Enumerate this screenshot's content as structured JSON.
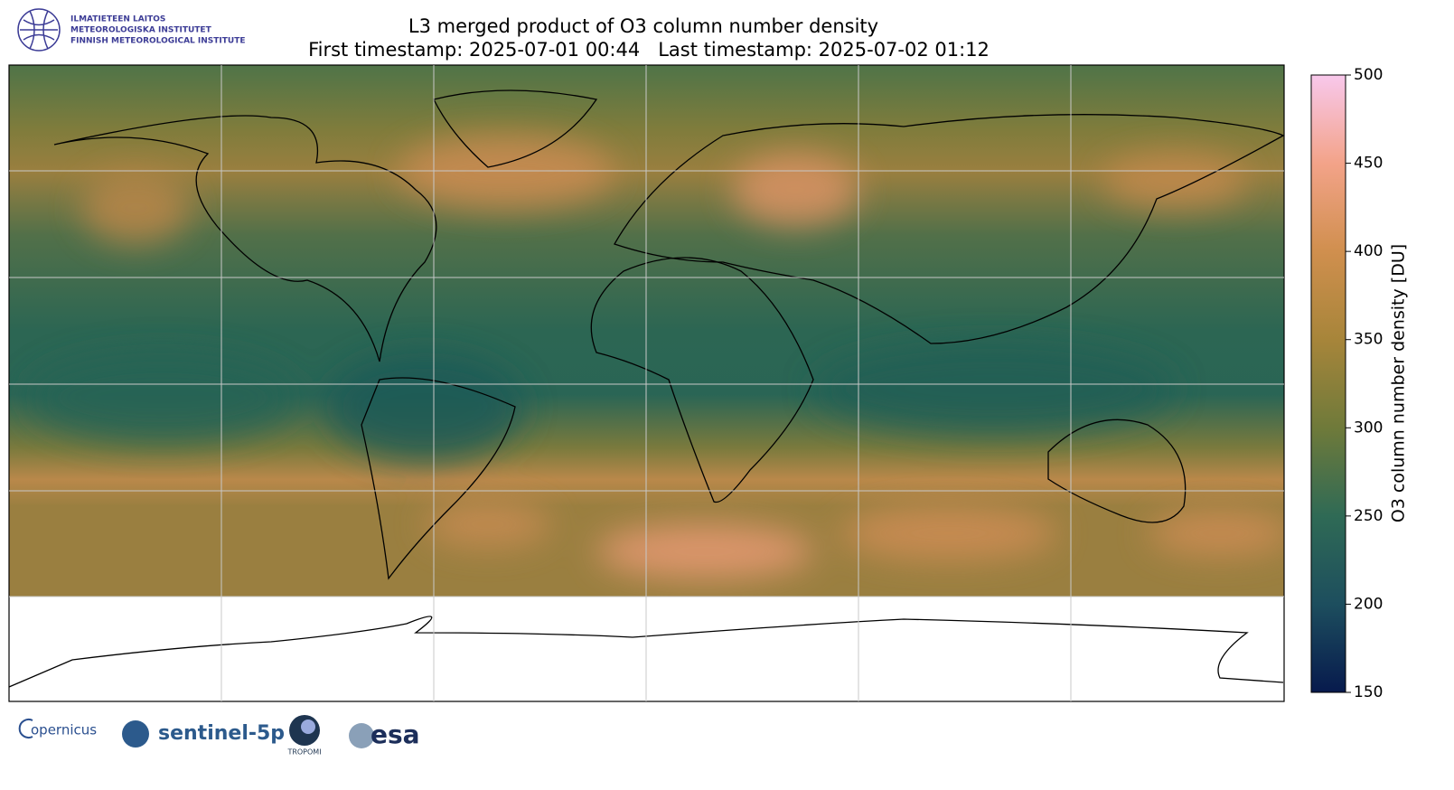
{
  "header": {
    "institute": [
      "ILMATIETEEN LAITOS",
      "METEOROLOGISKA INSTITUTET",
      "FINNISH METEOROLOGICAL INSTITUTE"
    ],
    "title": "L3 merged product of O3 column number density",
    "subtitle": "First timestamp: 2025-07-01 00:44   Last timestamp: 2025-07-02 01:12"
  },
  "colorbar": {
    "label": "O3 column number density [DU]",
    "lim": [
      150,
      500
    ],
    "ticks": [
      150,
      200,
      250,
      300,
      350,
      400,
      450,
      500
    ],
    "colormap": [
      "#071a4d",
      "#1d4e5e",
      "#2f6a55",
      "#6f7a3a",
      "#a7853a",
      "#d08f4e",
      "#f3a389",
      "#f8c8ec"
    ]
  },
  "footer": {
    "logos": [
      "opernicus",
      "sentinel-5p",
      "TROPOMI",
      "esa"
    ]
  }
}
